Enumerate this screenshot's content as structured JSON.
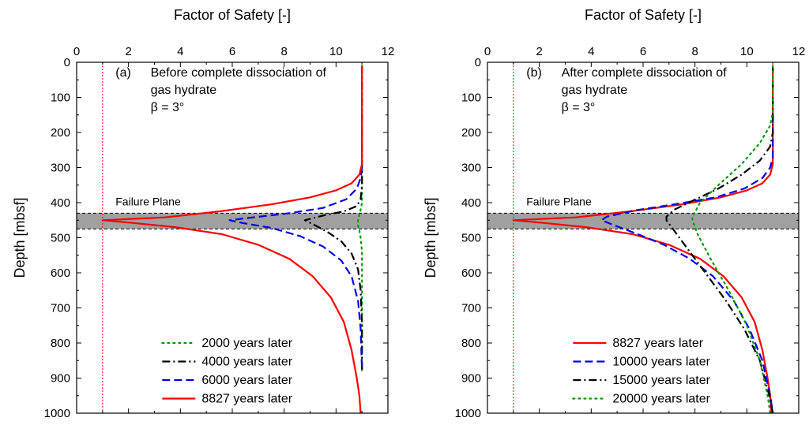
{
  "chart_data": [
    {
      "type": "line",
      "panel_label": "(a)",
      "annotation_lines": [
        "Before complete dissociation of",
        "gas hydrate",
        "β = 3°"
      ],
      "xlabel": "Factor of Safety [-]",
      "ylabel": "Depth [mbsf]",
      "xlim": [
        0,
        12
      ],
      "ylim": [
        1000,
        0
      ],
      "xticks": [
        "0",
        "2",
        "4",
        "6",
        "8",
        "10",
        "12"
      ],
      "yticks": [
        "0",
        "100",
        "200",
        "300",
        "400",
        "500",
        "600",
        "700",
        "800",
        "900",
        "1000"
      ],
      "failure_plane": {
        "label": "Failure Plane",
        "top": 430,
        "bottom": 475
      },
      "reference_line_fs": 1,
      "series": [
        {
          "name": "2000 years later",
          "color": "#009900",
          "style": "dot",
          "points": [
            [
              11,
              10
            ],
            [
              11,
              300
            ],
            [
              11,
              350
            ],
            [
              11,
              400
            ],
            [
              10.95,
              420
            ],
            [
              10.9,
              435
            ],
            [
              10.85,
              450
            ],
            [
              10.85,
              465
            ],
            [
              10.9,
              480
            ],
            [
              10.95,
              500
            ],
            [
              11,
              540
            ],
            [
              11,
              700
            ],
            [
              11,
              880
            ]
          ]
        },
        {
          "name": "4000 years later",
          "color": "#000000",
          "style": "dashdot",
          "points": [
            [
              11,
              10
            ],
            [
              11,
              300
            ],
            [
              11,
              350
            ],
            [
              10.95,
              390
            ],
            [
              10.8,
              410
            ],
            [
              10.3,
              425
            ],
            [
              9.6,
              435
            ],
            [
              8.8,
              450
            ],
            [
              9.2,
              465
            ],
            [
              9.7,
              485
            ],
            [
              10.2,
              510
            ],
            [
              10.6,
              545
            ],
            [
              10.85,
              590
            ],
            [
              10.95,
              650
            ],
            [
              11,
              750
            ],
            [
              11,
              880
            ]
          ]
        },
        {
          "name": "6000 years later",
          "color": "#0000ee",
          "style": "dash",
          "points": [
            [
              11,
              300
            ],
            [
              10.95,
              330
            ],
            [
              10.8,
              360
            ],
            [
              10.4,
              390
            ],
            [
              9.5,
              415
            ],
            [
              8.2,
              430
            ],
            [
              6.8,
              442
            ],
            [
              5.9,
              450
            ],
            [
              6.4,
              458
            ],
            [
              7.5,
              472
            ],
            [
              8.6,
              495
            ],
            [
              9.5,
              525
            ],
            [
              10.2,
              565
            ],
            [
              10.6,
              610
            ],
            [
              10.85,
              680
            ],
            [
              10.95,
              760
            ],
            [
              11,
              880
            ]
          ]
        },
        {
          "name": "8827 years later",
          "color": "#ff0000",
          "style": "solid",
          "points": [
            [
              11,
              10
            ],
            [
              11,
              250
            ],
            [
              11,
              290
            ],
            [
              10.9,
              320
            ],
            [
              10.6,
              345
            ],
            [
              10,
              365
            ],
            [
              9,
              385
            ],
            [
              7.5,
              405
            ],
            [
              5.5,
              425
            ],
            [
              3.4,
              442
            ],
            [
              1,
              450
            ],
            [
              2.2,
              458
            ],
            [
              3.8,
              470
            ],
            [
              5.6,
              490
            ],
            [
              7,
              520
            ],
            [
              8.2,
              560
            ],
            [
              9.1,
              610
            ],
            [
              9.8,
              670
            ],
            [
              10.3,
              740
            ],
            [
              10.6,
              820
            ],
            [
              10.8,
              900
            ],
            [
              10.9,
              950
            ],
            [
              10.95,
              1000
            ]
          ]
        }
      ],
      "legend": {
        "placement": "bottom-right",
        "entries": [
          "2000 years later",
          "4000 years later",
          "6000 years later",
          "8827 years later"
        ]
      }
    },
    {
      "type": "line",
      "panel_label": "(b)",
      "annotation_lines": [
        "After complete dissociation of",
        "gas hydrate",
        "β = 3°"
      ],
      "xlabel": "Factor of Safety [-]",
      "ylabel": "Depth [mbsf]",
      "xlim": [
        0,
        12
      ],
      "ylim": [
        1000,
        0
      ],
      "xticks": [
        "0",
        "2",
        "4",
        "6",
        "8",
        "10",
        "12"
      ],
      "yticks": [
        "0",
        "100",
        "200",
        "300",
        "400",
        "500",
        "600",
        "700",
        "800",
        "900",
        "1000"
      ],
      "failure_plane": {
        "label": "Failure Plane",
        "top": 430,
        "bottom": 475
      },
      "reference_line_fs": 1,
      "series": [
        {
          "name": "8827 years later",
          "color": "#ff0000",
          "style": "solid",
          "points": [
            [
              11,
              10
            ],
            [
              11,
              250
            ],
            [
              11,
              290
            ],
            [
              10.9,
              320
            ],
            [
              10.6,
              345
            ],
            [
              10,
              365
            ],
            [
              9,
              385
            ],
            [
              7.5,
              405
            ],
            [
              5.5,
              425
            ],
            [
              3.4,
              442
            ],
            [
              1,
              450
            ],
            [
              2.2,
              458
            ],
            [
              3.8,
              470
            ],
            [
              5.6,
              490
            ],
            [
              7,
              520
            ],
            [
              8.2,
              560
            ],
            [
              9.1,
              610
            ],
            [
              9.8,
              670
            ],
            [
              10.3,
              740
            ],
            [
              10.6,
              820
            ],
            [
              10.8,
              900
            ],
            [
              10.9,
              950
            ],
            [
              10.95,
              1000
            ]
          ]
        },
        {
          "name": "10000 years later",
          "color": "#0000ee",
          "style": "dash",
          "points": [
            [
              11,
              150
            ],
            [
              11,
              270
            ],
            [
              10.9,
              300
            ],
            [
              10.6,
              330
            ],
            [
              9.9,
              360
            ],
            [
              8.8,
              385
            ],
            [
              7.2,
              405
            ],
            [
              5.7,
              422
            ],
            [
              4.6,
              440
            ],
            [
              4.4,
              450
            ],
            [
              4.9,
              465
            ],
            [
              5.8,
              490
            ],
            [
              6.8,
              520
            ],
            [
              7.8,
              560
            ],
            [
              8.7,
              610
            ],
            [
              9.5,
              680
            ],
            [
              10.1,
              760
            ],
            [
              10.6,
              850
            ],
            [
              10.9,
              950
            ],
            [
              11,
              1000
            ]
          ]
        },
        {
          "name": "15000 years later",
          "color": "#000000",
          "style": "dashdot",
          "points": [
            [
              11,
              10
            ],
            [
              11,
              200
            ],
            [
              10.9,
              240
            ],
            [
              10.5,
              280
            ],
            [
              9.8,
              320
            ],
            [
              8.9,
              360
            ],
            [
              7.9,
              395
            ],
            [
              7.2,
              420
            ],
            [
              6.9,
              440
            ],
            [
              6.9,
              450
            ],
            [
              7.2,
              480
            ],
            [
              7.7,
              530
            ],
            [
              8.4,
              600
            ],
            [
              9.2,
              680
            ],
            [
              9.9,
              760
            ],
            [
              10.5,
              850
            ],
            [
              10.9,
              960
            ],
            [
              11,
              1000
            ]
          ]
        },
        {
          "name": "20000 years later",
          "color": "#009900",
          "style": "dot",
          "points": [
            [
              11,
              10
            ],
            [
              11,
              140
            ],
            [
              10.9,
              180
            ],
            [
              10.5,
              230
            ],
            [
              9.8,
              290
            ],
            [
              8.9,
              350
            ],
            [
              8.2,
              400
            ],
            [
              7.9,
              440
            ],
            [
              7.9,
              450
            ],
            [
              8.1,
              490
            ],
            [
              8.6,
              560
            ],
            [
              9.3,
              650
            ],
            [
              10,
              750
            ],
            [
              10.5,
              850
            ],
            [
              10.8,
              950
            ],
            [
              10.9,
              1000
            ]
          ]
        }
      ],
      "legend": {
        "placement": "bottom-right",
        "entries": [
          "8827  years later",
          "10000 years later",
          "15000 years later",
          "20000 years later"
        ]
      }
    }
  ]
}
